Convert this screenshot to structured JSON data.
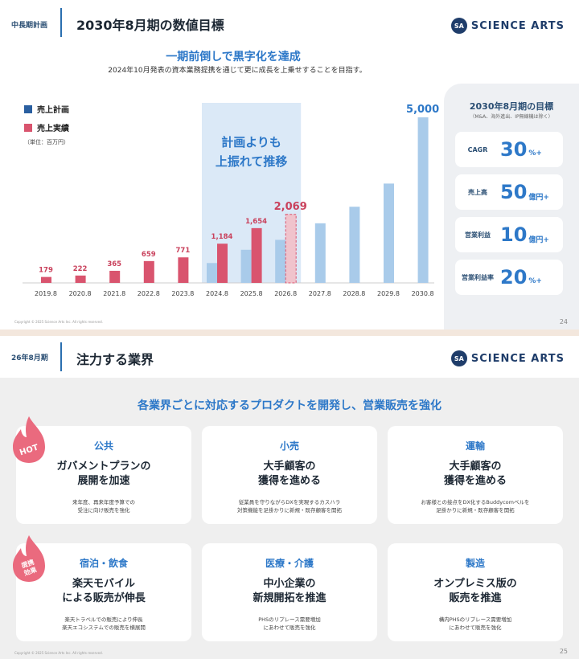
{
  "slide1": {
    "tag": "中長期計画",
    "title": "2030年8月期の数値目標",
    "logo_mark": "SA",
    "logo_text": "SCIENCE ARTS",
    "headline": "一期前倒しで黒字化を達成",
    "subline": "2024年10月発表の資本業務提携を通じて更に成長を上乗せすることを目指す。",
    "highlight_text_1": "計画よりも",
    "highlight_text_2": "上振れて推移",
    "copyright": "Copyright © 2025 Science Arts Inc. All rights reserved.",
    "page": "24",
    "targets": {
      "heading": "2030年8月期の目標",
      "note": "（M&A、海外進出、IP無線機は除く）",
      "items": [
        {
          "label": "CAGR",
          "value": "30",
          "unit": "%+"
        },
        {
          "label": "売上高",
          "value": "50",
          "unit": "億円+"
        },
        {
          "label": "営業利益",
          "value": "10",
          "unit": "億円+"
        },
        {
          "label": "営業利益率",
          "value": "20",
          "unit": "%+"
        }
      ]
    }
  },
  "chart_data": {
    "type": "bar",
    "categories": [
      "2019.8",
      "2020.8",
      "2021.8",
      "2022.8",
      "2023.8",
      "2024.8",
      "2025.8",
      "2026.8",
      "2027.8",
      "2028.8",
      "2029.8",
      "2030.8"
    ],
    "series": [
      {
        "name": "売上計画",
        "color": "#a9cbea",
        "values": [
          null,
          null,
          null,
          null,
          null,
          600,
          1000,
          1300,
          1800,
          2300,
          3000,
          5000
        ]
      },
      {
        "name": "売上実績",
        "color": "#d9546e",
        "values": [
          179,
          222,
          365,
          659,
          771,
          1184,
          1654,
          2069,
          null,
          null,
          null,
          null
        ],
        "forecast_index": 7
      }
    ],
    "data_labels": {
      "2019.8": "179",
      "2020.8": "222",
      "2021.8": "365",
      "2022.8": "659",
      "2023.8": "771",
      "2024.8": "1,184",
      "2025.8": "1,654",
      "2026.8": "2,069",
      "2030.8": "5,000"
    },
    "legend": [
      "売上計画",
      "売上実績"
    ],
    "unit_note": "（単位：百万円）",
    "ylim": [
      0,
      5200
    ],
    "grid": false,
    "legend_position": "top-left",
    "highlight_band": [
      "2024.8",
      "2026.8"
    ],
    "colors": {
      "plan": "#a9cbea",
      "actual": "#d9546e",
      "label_actual": "#c9415c",
      "label_plan": "#2d78c8",
      "band": "#dbe9f7"
    }
  },
  "slide2": {
    "tag": "26年8月期",
    "title": "注力する業界",
    "logo_mark": "SA",
    "logo_text": "SCIENCE ARTS",
    "headline": "各業界ごとに対応するプロダクトを開発し、営業販売を強化",
    "badge_hot": "HOT",
    "badge_synergy_1": "提携",
    "badge_synergy_2": "効果",
    "copyright": "Copyright © 2025 Science Arts Inc. All rights reserved.",
    "page": "25",
    "cards": [
      {
        "title": "公共",
        "main1": "ガバメントプランの",
        "main2": "展開を加速",
        "desc1": "来年度、再来年度予算での",
        "desc2": "受注に向け販売を強化"
      },
      {
        "title": "小売",
        "main1": "大手顧客の",
        "main2": "獲得を進める",
        "desc1": "従業員を守りながらDXを実現するカスハラ",
        "desc2": "対策機能を足掛かりに新規・既存顧客を開拓"
      },
      {
        "title": "運輸",
        "main1": "大手顧客の",
        "main2": "獲得を進める",
        "desc1": "お客様との接点をDX化するBuddycomベルを",
        "desc2": "足掛かりに新規・既存顧客を開拓"
      },
      {
        "title": "宿泊・飲食",
        "main1": "楽天モバイル",
        "main2": "による販売が伸長",
        "desc1": "楽天トラベルでの販売により伸長",
        "desc2": "楽天エコシステムでの販売を横展開"
      },
      {
        "title": "医療・介護",
        "main1": "中小企業の",
        "main2": "新規開拓を推進",
        "desc1": "PHSのリプレース需要増加",
        "desc2": "にあわせて販売を強化"
      },
      {
        "title": "製造",
        "main1": "オンプレミス版の",
        "main2": "販売を推進",
        "desc1": "構内PHSのリプレース需要増加",
        "desc2": "にあわせて販売を強化"
      }
    ]
  }
}
